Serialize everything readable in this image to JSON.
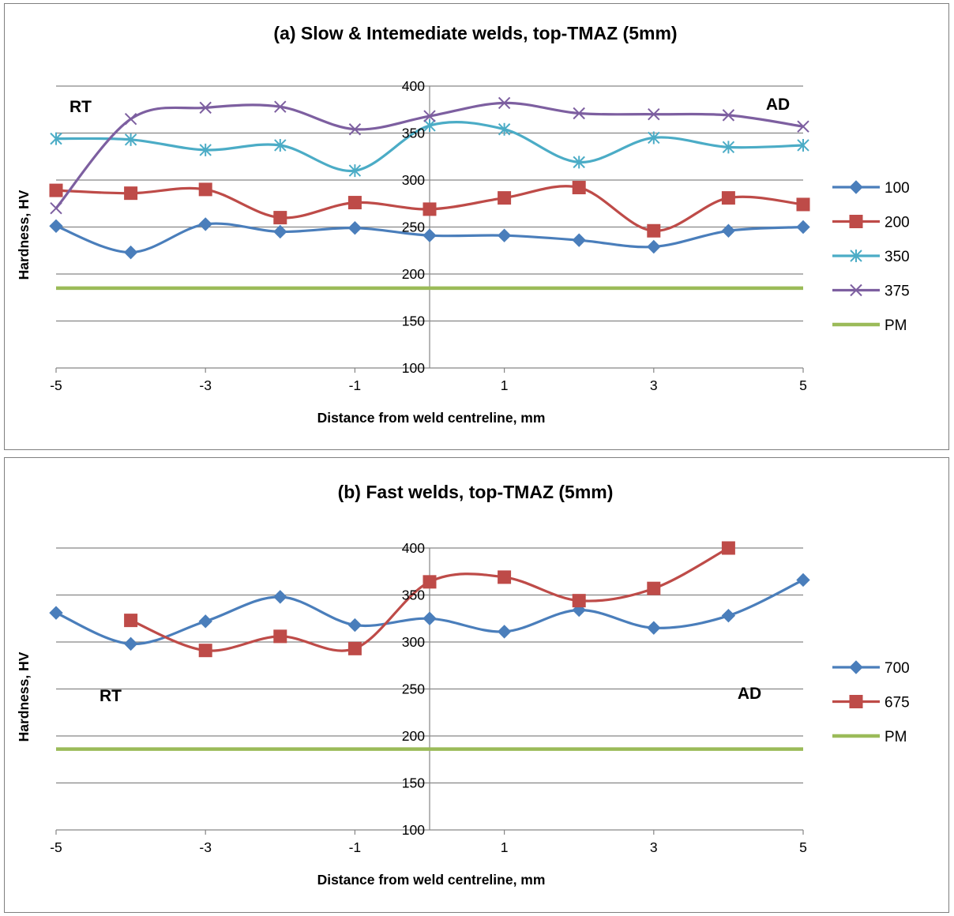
{
  "chart_data": [
    {
      "type": "line",
      "title": "(a) Slow & Intemediate welds, top-TMAZ (5mm)",
      "xlabel": "Distance from weld centreline, mm",
      "ylabel": "Hardness, HV",
      "x": [
        -5,
        -4,
        -3,
        -2,
        -1,
        0,
        1,
        2,
        3,
        4,
        5
      ],
      "xtick_labels": [
        "-5",
        "-3",
        "-1",
        "1",
        "3",
        "5"
      ],
      "xtick_positions": [
        -5,
        -3,
        -1,
        1,
        3,
        5
      ],
      "ylim": [
        100,
        400
      ],
      "yticks": [
        100,
        150,
        200,
        250,
        300,
        350,
        400
      ],
      "grid": true,
      "legend_position": "right",
      "annotations": [
        {
          "text": "RT",
          "side": "left"
        },
        {
          "text": "AD",
          "side": "right"
        }
      ],
      "series": [
        {
          "name": "100",
          "color": "#4a7ebb",
          "marker": "diamond",
          "values": [
            251,
            223,
            253,
            245,
            249,
            241,
            241,
            236,
            229,
            246,
            250
          ]
        },
        {
          "name": "200",
          "color": "#be4b48",
          "marker": "square",
          "values": [
            289,
            286,
            290,
            260,
            276,
            269,
            281,
            292,
            246,
            281,
            274
          ]
        },
        {
          "name": "350",
          "color": "#4bacc6",
          "marker": "asterisk",
          "values": [
            344,
            343,
            332,
            337,
            310,
            358,
            354,
            319,
            345,
            335,
            337
          ]
        },
        {
          "name": "375",
          "color": "#7d5fa0",
          "marker": "x",
          "values": [
            270,
            365,
            377,
            378,
            354,
            368,
            382,
            371,
            370,
            369,
            357
          ]
        },
        {
          "name": "PM",
          "color": "#9bbb59",
          "marker": "none",
          "values": [
            185,
            185,
            185,
            185,
            185,
            185,
            185,
            185,
            185,
            185,
            185
          ]
        }
      ]
    },
    {
      "type": "line",
      "title": "(b) Fast welds, top-TMAZ (5mm)",
      "xlabel": "Distance from weld centreline, mm",
      "ylabel": "Hardness, HV",
      "x": [
        -5,
        -4,
        -3,
        -2,
        -1,
        0,
        1,
        2,
        3,
        4,
        5
      ],
      "xtick_labels": [
        "-5",
        "-3",
        "-1",
        "1",
        "3",
        "5"
      ],
      "xtick_positions": [
        -5,
        -3,
        -1,
        1,
        3,
        5
      ],
      "ylim": [
        100,
        400
      ],
      "yticks": [
        100,
        150,
        200,
        250,
        300,
        350,
        400
      ],
      "grid": true,
      "legend_position": "right",
      "annotations": [
        {
          "text": "RT",
          "side": "left"
        },
        {
          "text": "AD",
          "side": "right"
        }
      ],
      "series": [
        {
          "name": "700",
          "color": "#4a7ebb",
          "marker": "diamond",
          "values": [
            331,
            298,
            322,
            348,
            318,
            325,
            311,
            334,
            315,
            328,
            366
          ]
        },
        {
          "name": "675",
          "color": "#be4b48",
          "marker": "square",
          "values": [
            null,
            323,
            291,
            306,
            293,
            364,
            369,
            344,
            357,
            400,
            null
          ]
        },
        {
          "name": "PM",
          "color": "#9bbb59",
          "marker": "none",
          "values": [
            186,
            186,
            186,
            186,
            186,
            186,
            186,
            186,
            186,
            186,
            186
          ]
        }
      ]
    }
  ]
}
